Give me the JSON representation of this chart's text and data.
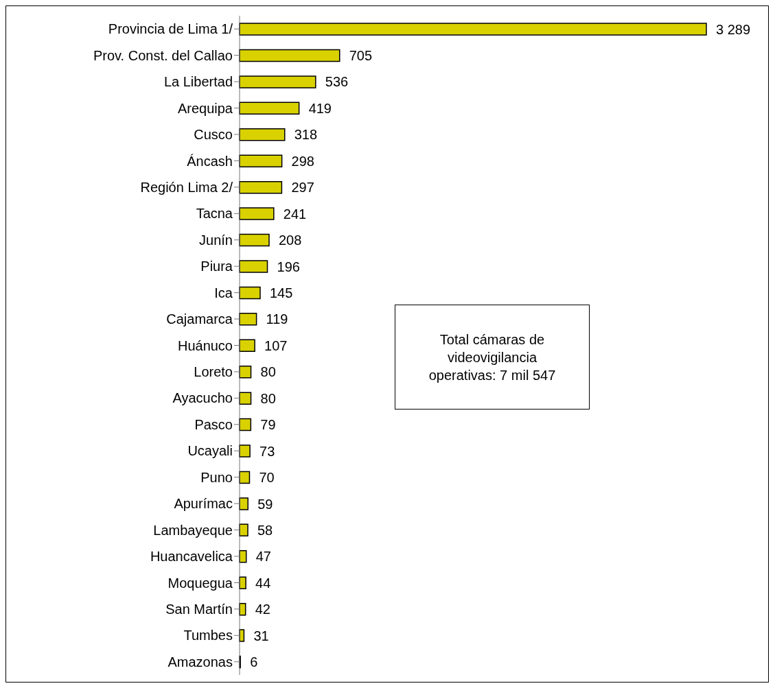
{
  "chart_data": {
    "type": "bar",
    "orientation": "horizontal",
    "categories": [
      "Provincia de Lima 1/",
      "Prov. Const. del Callao",
      "La Libertad",
      "Arequipa",
      "Cusco",
      "Áncash",
      "Región Lima 2/",
      "Tacna",
      "Junín",
      "Piura",
      "Ica",
      "Cajamarca",
      "Huánuco",
      "Loreto",
      "Ayacucho",
      "Pasco",
      "Ucayali",
      "Puno",
      "Apurímac",
      "Lambayeque",
      "Huancavelica",
      "Moquegua",
      "San Martín",
      "Tumbes",
      "Amazonas"
    ],
    "values": [
      3289,
      705,
      536,
      419,
      318,
      298,
      297,
      241,
      208,
      196,
      145,
      119,
      107,
      80,
      80,
      79,
      73,
      70,
      59,
      58,
      47,
      44,
      42,
      31,
      6
    ],
    "value_labels": [
      "3 289",
      "705",
      "536",
      "419",
      "318",
      "298",
      "297",
      "241",
      "208",
      "196",
      "145",
      "119",
      "107",
      "80",
      "80",
      "79",
      "73",
      "70",
      "59",
      "58",
      "47",
      "44",
      "42",
      "31",
      "6"
    ],
    "color": "#d9d200",
    "annotations": [
      "Total cámaras de videovigilancia operativas: 7 mil 547"
    ],
    "grid": false,
    "legend": false
  }
}
